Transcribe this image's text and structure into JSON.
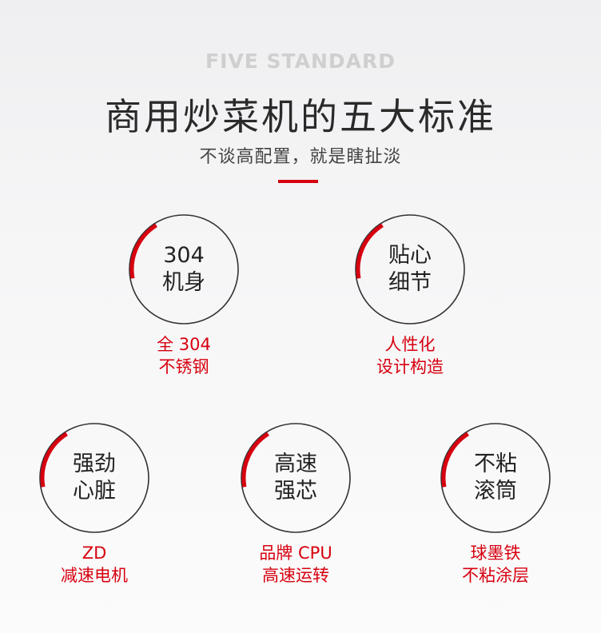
{
  "header": {
    "eyebrow": "FIVE STANDARD",
    "title": "商用炒菜机的五大标准",
    "subtitle": "不谈高配置，就是瞎扯淡"
  },
  "colors": {
    "accent": "#d7000f",
    "circle": "#333333"
  },
  "standards": [
    {
      "line1": "304",
      "line2": "机身",
      "desc1": "全 304",
      "desc2": "不锈钢"
    },
    {
      "line1": "贴心",
      "line2": "细节",
      "desc1": "人性化",
      "desc2": "设计构造"
    },
    {
      "line1": "强劲",
      "line2": "心脏",
      "desc1": "ZD",
      "desc2": "减速电机"
    },
    {
      "line1": "高速",
      "line2": "强芯",
      "desc1": "品牌 CPU",
      "desc2": "高速运转"
    },
    {
      "line1": "不粘",
      "line2": "滚筒",
      "desc1": "球墨铁",
      "desc2": "不粘涂层"
    }
  ]
}
